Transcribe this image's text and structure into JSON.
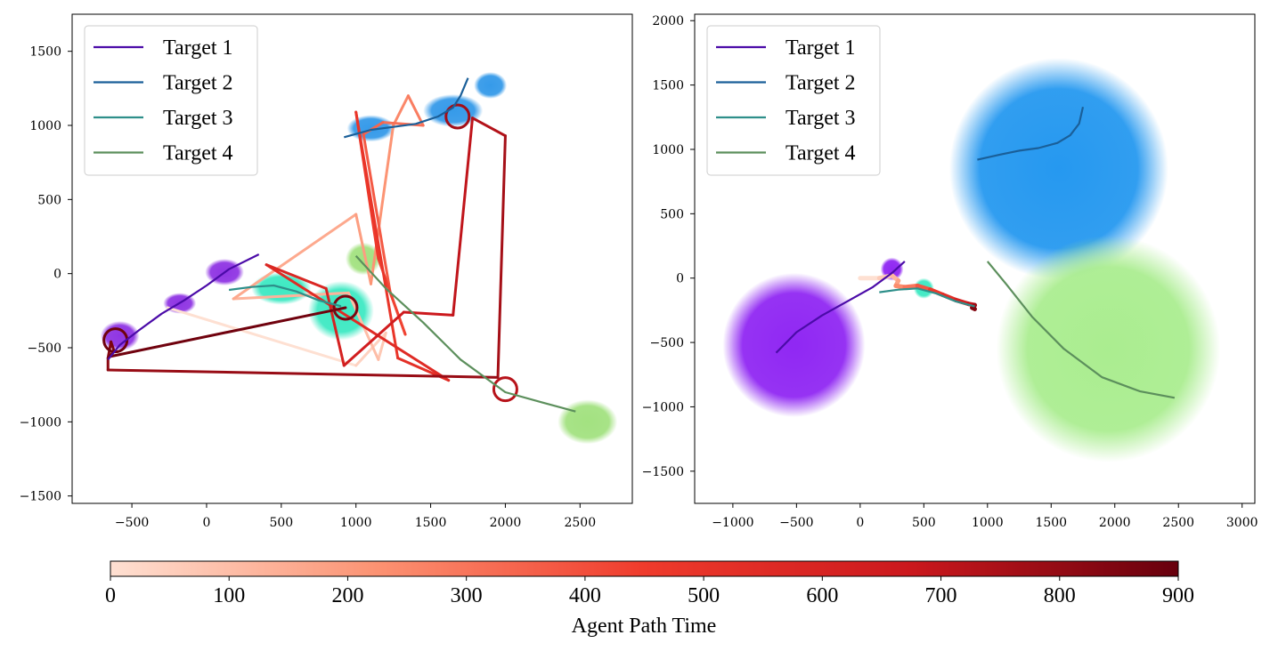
{
  "chart_data": [
    {
      "type": "line",
      "panel": "left",
      "title": "",
      "xlabel": "",
      "ylabel": "",
      "xlim": [
        -900,
        2850
      ],
      "ylim": [
        -1550,
        1750
      ],
      "xticks": [
        -500,
        0,
        500,
        1000,
        1500,
        2000,
        2500
      ],
      "xtick_labels": [
        "−500",
        "0",
        "500",
        "1000",
        "1500",
        "2000",
        "2500"
      ],
      "yticks": [
        -1500,
        -1000,
        -500,
        0,
        500,
        1000,
        1500
      ],
      "ytick_labels": [
        "−1500",
        "−1000",
        "−500",
        "0",
        "500",
        "1000",
        "1500"
      ],
      "legend": {
        "location": "upper-left",
        "entries": [
          {
            "label": "Target 1",
            "color": "#4b0ba8"
          },
          {
            "label": "Target 2",
            "color": "#1a5f99"
          },
          {
            "label": "Target 3",
            "color": "#2e8f8a"
          },
          {
            "label": "Target 4",
            "color": "#5c8f5c"
          }
        ]
      },
      "blobs": [
        {
          "series": "Target 1",
          "color": "#8a2be2",
          "x": -580,
          "y": -420,
          "rx": 130,
          "ry": 100
        },
        {
          "series": "Target 1",
          "color": "#8a2be2",
          "x": -180,
          "y": -200,
          "rx": 110,
          "ry": 70
        },
        {
          "series": "Target 1",
          "color": "#8a2be2",
          "x": 120,
          "y": 10,
          "rx": 130,
          "ry": 90
        },
        {
          "series": "Target 2",
          "color": "#2b95e8",
          "x": 1100,
          "y": 980,
          "rx": 160,
          "ry": 90
        },
        {
          "series": "Target 2",
          "color": "#2b95e8",
          "x": 1650,
          "y": 1100,
          "rx": 200,
          "ry": 110
        },
        {
          "series": "Target 2",
          "color": "#2b95e8",
          "x": 1900,
          "y": 1270,
          "rx": 110,
          "ry": 90
        },
        {
          "series": "Target 3",
          "color": "#34e8c0",
          "x": 900,
          "y": -250,
          "rx": 220,
          "ry": 200
        },
        {
          "series": "Target 3",
          "color": "#34e8c0",
          "x": 500,
          "y": -100,
          "rx": 200,
          "ry": 110
        },
        {
          "series": "Target 4",
          "color": "#9ee07a",
          "x": 2550,
          "y": -1000,
          "rx": 200,
          "ry": 150
        },
        {
          "series": "Target 4",
          "color": "#9ee07a",
          "x": 1050,
          "y": 100,
          "rx": 120,
          "ry": 110
        }
      ],
      "series": [
        {
          "name": "Target 1",
          "color": "#4b0ba8",
          "x": [
            -660,
            -580,
            -450,
            -300,
            -150,
            0,
            150,
            350
          ],
          "y": [
            -580,
            -480,
            -380,
            -270,
            -180,
            -80,
            30,
            130
          ]
        },
        {
          "name": "Target 2",
          "color": "#1a5f99",
          "x": [
            920,
            1100,
            1250,
            1400,
            1550,
            1650,
            1700,
            1750
          ],
          "y": [
            920,
            970,
            990,
            1010,
            1060,
            1120,
            1200,
            1320
          ]
        },
        {
          "name": "Target 3",
          "color": "#2e8f8a",
          "x": [
            150,
            300,
            450,
            600,
            750,
            900
          ],
          "y": [
            -110,
            -90,
            -80,
            -120,
            -180,
            -220
          ]
        },
        {
          "name": "Target 4",
          "color": "#5c8f5c",
          "x": [
            1000,
            1200,
            1450,
            1700,
            2000,
            2250,
            2470
          ],
          "y": [
            120,
            -100,
            -330,
            -580,
            -800,
            -870,
            -930
          ]
        }
      ],
      "agent_path": {
        "colormap": "Reds",
        "time_range": [
          0,
          900
        ],
        "x": [
          -260,
          1000,
          1200,
          1150,
          950,
          180,
          1000,
          1100,
          1250,
          1350,
          1450,
          1180,
          1050,
          1230,
          1330,
          1150,
          1000,
          1280,
          1620,
          400,
          800,
          920,
          1320,
          1650,
          1780,
          2000,
          1950,
          -660,
          -660,
          -640,
          -620,
          -650,
          930
        ],
        "y": [
          -230,
          -620,
          -400,
          -580,
          -130,
          -170,
          400,
          -70,
          1000,
          1200,
          1000,
          1020,
          940,
          -130,
          -410,
          100,
          1090,
          -570,
          -720,
          60,
          -100,
          -620,
          -260,
          -280,
          1050,
          930,
          -700,
          -650,
          -570,
          -460,
          -520,
          -560,
          -230
        ],
        "t": [
          0,
          40,
          70,
          100,
          130,
          160,
          190,
          220,
          250,
          280,
          310,
          340,
          370,
          400,
          430,
          460,
          490,
          520,
          550,
          580,
          610,
          640,
          670,
          700,
          730,
          760,
          790,
          820,
          840,
          860,
          870,
          880,
          900
        ]
      }
    },
    {
      "type": "line",
      "panel": "right",
      "title": "",
      "xlabel": "",
      "ylabel": "",
      "xlim": [
        -1300,
        3100
      ],
      "ylim": [
        -1750,
        2050
      ],
      "xticks": [
        -1000,
        -500,
        0,
        500,
        1000,
        1500,
        2000,
        2500,
        3000
      ],
      "xtick_labels": [
        "−1000",
        "−500",
        "0",
        "500",
        "1000",
        "1500",
        "2000",
        "2500",
        "3000"
      ],
      "yticks": [
        -1500,
        -1000,
        -500,
        0,
        500,
        1000,
        1500,
        2000
      ],
      "ytick_labels": [
        "−1500",
        "−1000",
        "−500",
        "0",
        "500",
        "1000",
        "1500",
        "2000"
      ],
      "legend": {
        "location": "upper-left",
        "entries": [
          {
            "label": "Target 1",
            "color": "#4b0ba8"
          },
          {
            "label": "Target 2",
            "color": "#1a5f99"
          },
          {
            "label": "Target 3",
            "color": "#2e8f8a"
          },
          {
            "label": "Target 4",
            "color": "#5c8f5c"
          }
        ]
      },
      "blobs": [
        {
          "series": "Target 1",
          "color": "#8a1cf2",
          "x": -520,
          "y": -520,
          "rx": 560,
          "ry": 560
        },
        {
          "series": "Target 1",
          "color": "#8a1cf2",
          "x": 250,
          "y": 70,
          "rx": 90,
          "ry": 90
        },
        {
          "series": "Target 2",
          "color": "#1a93ef",
          "x": 1560,
          "y": 850,
          "rx": 860,
          "ry": 860
        },
        {
          "series": "Target 3",
          "color": "#34e8c0",
          "x": 500,
          "y": -80,
          "rx": 80,
          "ry": 80
        },
        {
          "series": "Target 4",
          "color": "#a6ec8a",
          "x": 1950,
          "y": -550,
          "rx": 880,
          "ry": 880
        }
      ],
      "series": [
        {
          "name": "Target 1",
          "color": "#4b0ba8",
          "x": [
            -660,
            -500,
            -300,
            -100,
            100,
            250,
            350
          ],
          "y": [
            -580,
            -420,
            -290,
            -180,
            -70,
            40,
            130
          ]
        },
        {
          "name": "Target 2",
          "color": "#1a5f99",
          "x": [
            920,
            1100,
            1250,
            1400,
            1550,
            1650,
            1720,
            1750
          ],
          "y": [
            920,
            960,
            990,
            1010,
            1050,
            1110,
            1200,
            1330
          ]
        },
        {
          "name": "Target 3",
          "color": "#2e8f8a",
          "x": [
            150,
            300,
            450,
            600,
            750,
            900
          ],
          "y": [
            -110,
            -90,
            -80,
            -120,
            -180,
            -220
          ]
        },
        {
          "name": "Target 4",
          "color": "#5c8f5c",
          "x": [
            1000,
            1150,
            1350,
            1600,
            1900,
            2200,
            2470
          ],
          "y": [
            130,
            -50,
            -300,
            -550,
            -770,
            -880,
            -930
          ]
        }
      ],
      "agent_path": {
        "colormap": "Reds",
        "time_range": [
          0,
          900
        ],
        "x": [
          0,
          150,
          250,
          300,
          280,
          350,
          450,
          550,
          650,
          750,
          850,
          900,
          880,
          900
        ],
        "y": [
          0,
          0,
          20,
          -20,
          -60,
          -70,
          -60,
          -90,
          -130,
          -170,
          -200,
          -210,
          -230,
          -240
        ],
        "t": [
          0,
          60,
          120,
          180,
          240,
          300,
          380,
          460,
          540,
          620,
          700,
          780,
          840,
          900
        ]
      }
    }
  ],
  "colorbar": {
    "colormap": "Reds",
    "range": [
      0,
      900
    ],
    "ticks": [
      0,
      100,
      200,
      300,
      400,
      500,
      600,
      700,
      800,
      900
    ],
    "tick_labels": [
      "0",
      "100",
      "200",
      "300",
      "400",
      "500",
      "600",
      "700",
      "800",
      "900"
    ],
    "label": "Agent Path Time"
  }
}
